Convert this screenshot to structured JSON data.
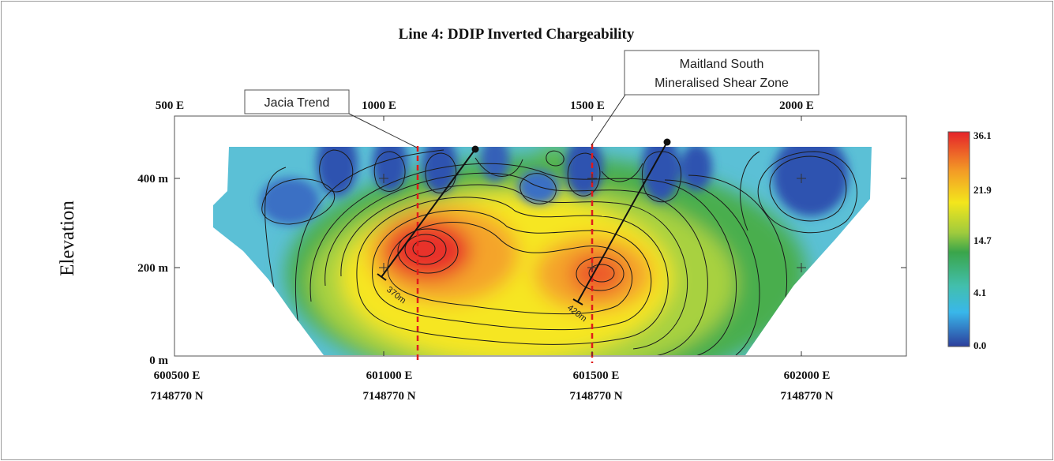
{
  "chart_data": {
    "type": "heatmap",
    "title": "Line 4: DDIP Inverted Chargeability",
    "ylabel": "Elevation",
    "top_ticks": [
      "500 E",
      "1000 E",
      "1500 E",
      "2000 E"
    ],
    "top_tick_values": [
      500,
      1000,
      1500,
      2000
    ],
    "xlim": [
      500,
      2200
    ],
    "y_ticks": [
      "400 m",
      "200 m",
      "0 m"
    ],
    "y_tick_values": [
      400,
      200,
      0
    ],
    "ylim": [
      0,
      500
    ],
    "bottom_ticks": [
      {
        "x": 500,
        "easting": "600500 E",
        "northing": "7148770 N"
      },
      {
        "x": 1000,
        "easting": "601000 E",
        "northing": "7148770 N"
      },
      {
        "x": 1500,
        "easting": "601500 E",
        "northing": "7148770 N"
      },
      {
        "x": 2000,
        "easting": "602000 E",
        "northing": "7148770 N"
      }
    ],
    "colorbar": {
      "labels": [
        "36.1",
        "21.9",
        "14.7",
        "4.1",
        "0.0"
      ],
      "values": [
        36.1,
        21.9,
        14.7,
        4.1,
        0.0
      ],
      "colors": [
        "#e5232a",
        "#f3e61c",
        "#3aa54a",
        "#39b7ea",
        "#2c3e9c"
      ]
    },
    "anomalies": [
      {
        "x": 1080,
        "y": 230,
        "value": 36.1
      },
      {
        "x": 1460,
        "y": 185,
        "value": 30
      }
    ],
    "reference_lines": [
      {
        "x": 1080,
        "label": "Jacia Trend"
      },
      {
        "x": 1500,
        "label_lines": [
          "Maitland South",
          "Mineralised Shear Zone"
        ]
      }
    ],
    "drillholes": [
      {
        "top_x": 1220,
        "top_y": 465,
        "bottom_x": 1000,
        "bottom_y": 175,
        "label": "370m"
      },
      {
        "top_x": 1690,
        "top_y": 475,
        "bottom_x": 1470,
        "bottom_y": 120,
        "label": "420m"
      }
    ],
    "crosses": [
      {
        "x": 1000,
        "y": 400
      },
      {
        "x": 1500,
        "y": 400
      },
      {
        "x": 2000,
        "y": 400
      },
      {
        "x": 1000,
        "y": 200
      },
      {
        "x": 1500,
        "y": 200
      },
      {
        "x": 2000,
        "y": 200
      }
    ]
  }
}
